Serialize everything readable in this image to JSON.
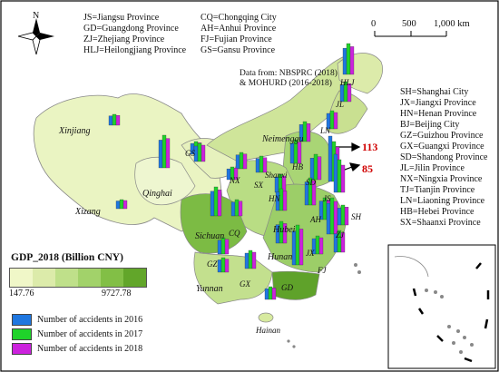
{
  "north_label": "N",
  "abbreviations_left": [
    "JS=Jiangsu Province",
    "GD=Guangdong Province",
    "ZJ=Zhejiang Province",
    "HLJ=Heilongjiang Province"
  ],
  "abbreviations_middle": [
    "CQ=Chongqing City",
    "AH=Anhui Province",
    "FJ=Fujian Province",
    "GS=Gansu Province"
  ],
  "abbreviations_right": [
    "SH=Shanghai City",
    "JX=Jiangxi Province",
    "HN=Henan Province",
    "BJ=Beijing City",
    "GZ=Guizhou Province",
    "GX=Guangxi Province",
    "SD=Shandong Province",
    "JL=Jilin Province",
    "NX=Ningxia Province",
    "TJ=Tianjin Province",
    "LN=Liaoning Province",
    "HB=Hebei Province",
    "SX=Shaanxi Province"
  ],
  "data_source": [
    "Data from: NBSPRC (2018)",
    "& MOHURD (2016-2018)"
  ],
  "scale_bar": {
    "ticks": [
      "0",
      "500",
      "1,000 km"
    ]
  },
  "legend": {
    "title": "GDP_2018 (Billion CNY)",
    "min": "147.76",
    "max": "9727.78",
    "gradient_colors": [
      "#f0f7c8",
      "#dcebaa",
      "#bfe08a",
      "#a2d26a",
      "#82bf46",
      "#62a62a"
    ],
    "series": [
      {
        "label": "Number of accidents in 2016",
        "color": "#1f77e0"
      },
      {
        "label": "Number of accidents in 2017",
        "color": "#1fd32a"
      },
      {
        "label": "Number of accidents in 2018",
        "color": "#cc22dd"
      }
    ]
  },
  "callouts": [
    {
      "value": "113"
    },
    {
      "value": "85"
    }
  ],
  "region_labels": [
    {
      "id": "xinjiang",
      "text": "Xinjiang",
      "big": true
    },
    {
      "id": "xizang",
      "text": "Xizang",
      "big": true
    },
    {
      "id": "qinghai",
      "text": "Qinghai",
      "big": true
    },
    {
      "id": "neimenggu",
      "text": "Neimenggu",
      "big": true
    },
    {
      "id": "sichuan",
      "text": "Sichuan",
      "big": true
    },
    {
      "id": "yunnan",
      "text": "Yunnan",
      "big": true
    },
    {
      "id": "hubei",
      "text": "Hubei",
      "big": true
    },
    {
      "id": "hunan",
      "text": "Hunan",
      "big": true
    },
    {
      "id": "shanxi",
      "text": "Shanxi",
      "big": false
    },
    {
      "id": "hainan",
      "text": "Hainan",
      "big": false
    },
    {
      "id": "hlj",
      "text": "HLJ",
      "big": false
    },
    {
      "id": "jl",
      "text": "JL",
      "big": false
    },
    {
      "id": "ln",
      "text": "LN",
      "big": false
    },
    {
      "id": "gs",
      "text": "GS",
      "big": false
    },
    {
      "id": "nx",
      "text": "NX",
      "big": false
    },
    {
      "id": "sx",
      "text": "SX",
      "big": false
    },
    {
      "id": "hb",
      "text": "HB",
      "big": false
    },
    {
      "id": "sd",
      "text": "SD",
      "big": false
    },
    {
      "id": "hn",
      "text": "HN",
      "big": false
    },
    {
      "id": "js",
      "text": "JS",
      "big": false
    },
    {
      "id": "ah",
      "text": "AH",
      "big": false
    },
    {
      "id": "sh",
      "text": "SH",
      "big": false
    },
    {
      "id": "zj",
      "text": "ZJ",
      "big": false
    },
    {
      "id": "jx",
      "text": "JX",
      "big": false
    },
    {
      "id": "fj",
      "text": "FJ",
      "big": false
    },
    {
      "id": "cq",
      "text": "CQ",
      "big": false
    },
    {
      "id": "gz",
      "text": "GZ",
      "big": false
    },
    {
      "id": "gx",
      "text": "GX",
      "big": false
    },
    {
      "id": "gd",
      "text": "GD",
      "big": false
    }
  ]
}
